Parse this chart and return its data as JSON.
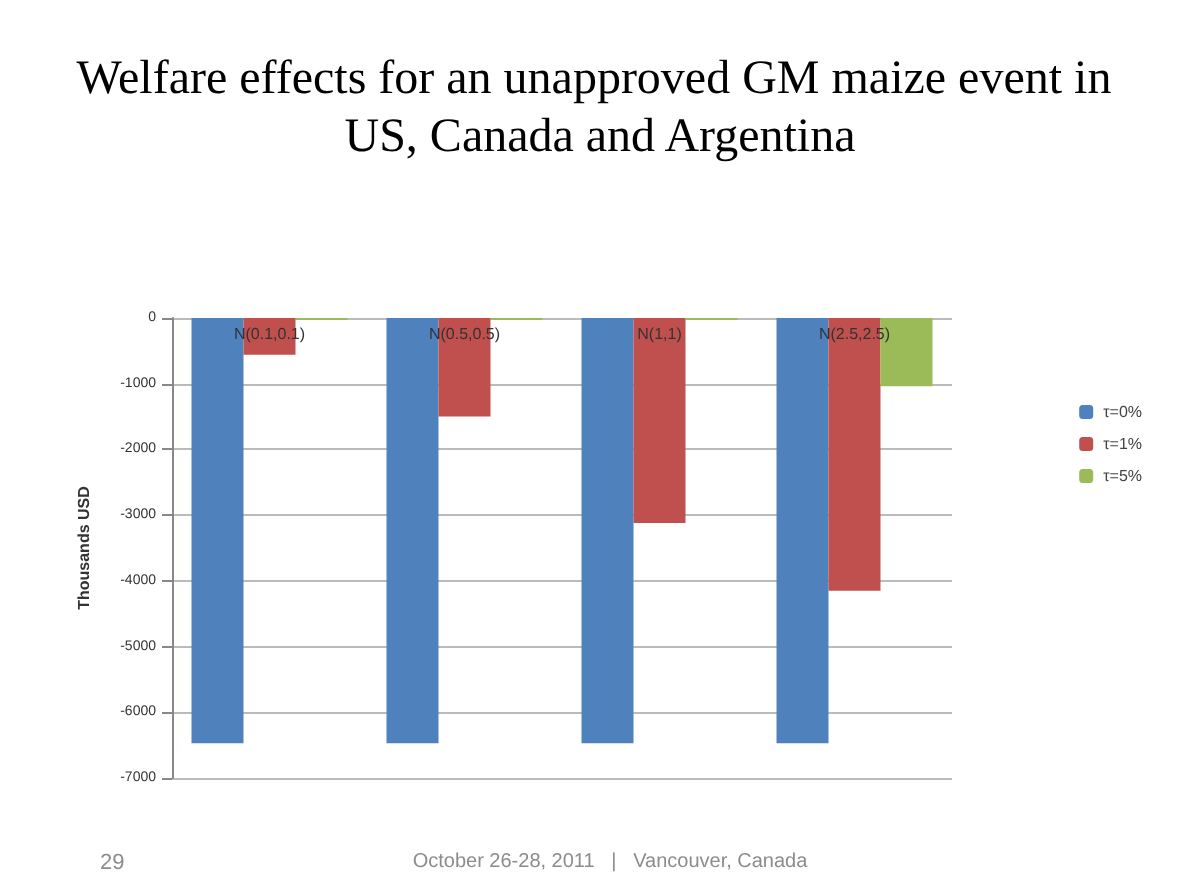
{
  "chart_data": {
    "type": "bar",
    "title": "Welfare effects for an unapproved GM maize event in US, Canada and Argentina",
    "ylabel": "Thousands USD",
    "categories": [
      "N(0.1,0.1)",
      "N(0.5,0.5)",
      "N(1,1)",
      "N(2.5,2.5)"
    ],
    "series": [
      {
        "name": "τ=0%",
        "color": "#4f81bd",
        "values": [
          -6470,
          -6470,
          -6470,
          -6470
        ]
      },
      {
        "name": "τ=1%",
        "color": "#c0504d",
        "values": [
          -560,
          -1500,
          -3120,
          -4150
        ]
      },
      {
        "name": "τ=5%",
        "color": "#9bbb59",
        "values": [
          -30,
          -30,
          -30,
          -1040
        ]
      }
    ],
    "ylim": [
      -7000,
      0
    ],
    "yticks": [
      -7000,
      -6000,
      -5000,
      -4000,
      -3000,
      -2000,
      -1000,
      0
    ],
    "grid": "y",
    "legend": "right",
    "annotations": [
      "29",
      "October 26-28, 2011   |   Vancouver, Canada"
    ]
  }
}
